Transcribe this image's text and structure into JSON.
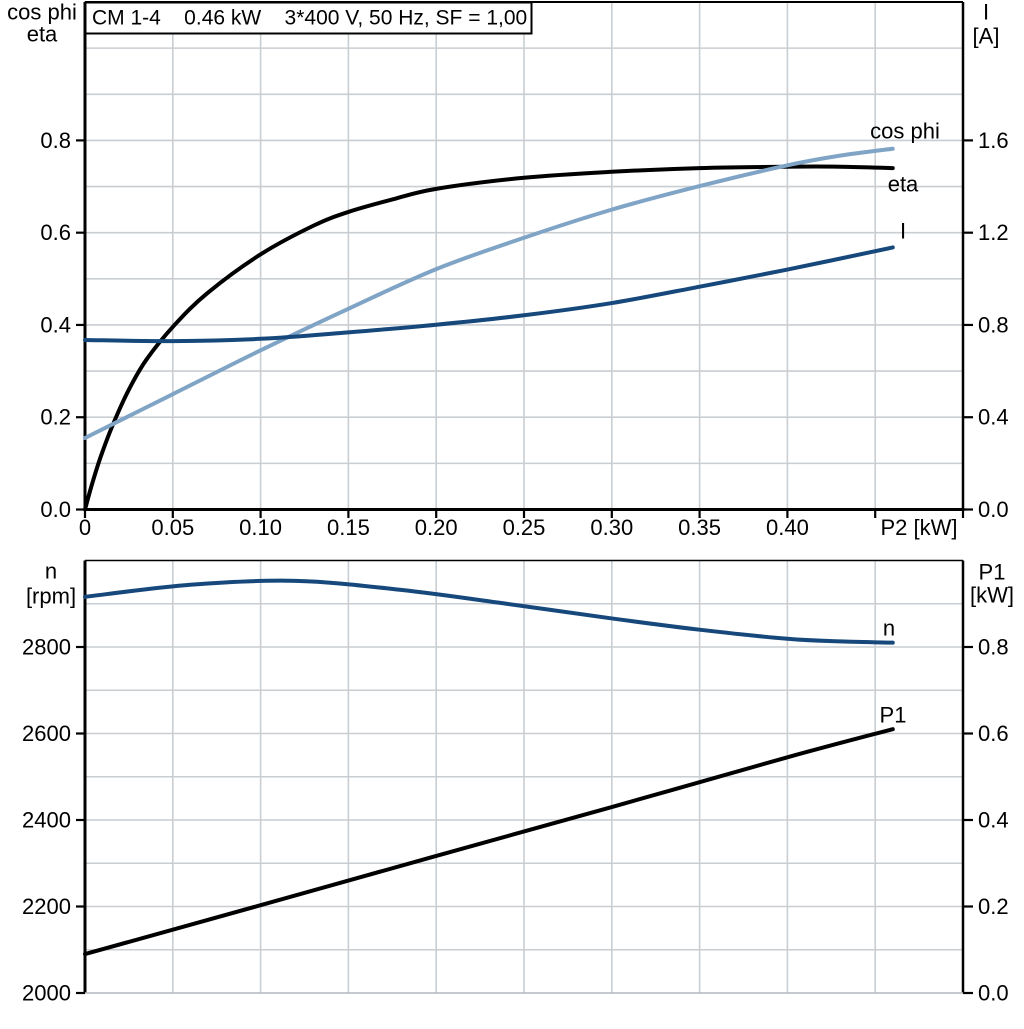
{
  "page": {
    "background": "#ffffff"
  },
  "colors": {
    "black": "#000000",
    "navy": "#16487b",
    "steel_blue": "#7fa4c5",
    "grid": "#c9ced2",
    "frame": "#000000",
    "bottom_plot_baseline": "#b4b9bd"
  },
  "chart_data": [
    {
      "type": "line",
      "title": "CM 1-4    0.46 kW    3*400 V, 50 Hz, SF = 1,00",
      "x_axis": {
        "min": 0,
        "max": 0.5,
        "grid_step": 0.05,
        "tick_values": [
          0,
          0.05,
          0.1,
          0.15,
          0.2,
          0.25,
          0.3,
          0.35,
          0.4,
          0.45,
          0.5
        ],
        "tick_labels": [
          "0",
          "0.05",
          "0.10",
          "0.15",
          "0.20",
          "0.25",
          "0.30",
          "0.35",
          "0.40",
          "",
          ""
        ],
        "title": "P2 [kW]"
      },
      "left_axis": {
        "title_lines": [
          "cos phi",
          "eta"
        ],
        "min": 0,
        "max": 1.1,
        "grid_step": 0.1,
        "tick_values": [
          0.0,
          0.2,
          0.4,
          0.6,
          0.8
        ],
        "tick_labels": [
          "0.0",
          "0.2",
          "0.4",
          "0.6",
          "0.8"
        ]
      },
      "right_axis": {
        "title_lines": [
          "I",
          "[A]"
        ],
        "min": 0,
        "max": 2.2,
        "grid_step": 0.2,
        "tick_values": [
          0.0,
          0.4,
          0.8,
          1.2,
          1.6
        ],
        "tick_labels": [
          "0.0",
          "0.4",
          "0.8",
          "1.2",
          "1.6"
        ]
      },
      "series": [
        {
          "name": "eta",
          "label": "eta",
          "axis": "left",
          "color": "#000000",
          "points": [
            [
              0,
              0
            ],
            [
              0.004,
              0.055
            ],
            [
              0.009,
              0.115
            ],
            [
              0.016,
              0.185
            ],
            [
              0.025,
              0.26
            ],
            [
              0.035,
              0.325
            ],
            [
              0.051,
              0.4
            ],
            [
              0.07,
              0.47
            ],
            [
              0.1,
              0.553
            ],
            [
              0.13,
              0.615
            ],
            [
              0.15,
              0.645
            ],
            [
              0.175,
              0.672
            ],
            [
              0.2,
              0.695
            ],
            [
              0.25,
              0.719
            ],
            [
              0.3,
              0.732
            ],
            [
              0.35,
              0.74
            ],
            [
              0.4,
              0.743
            ],
            [
              0.43,
              0.743
            ],
            [
              0.46,
              0.74
            ]
          ]
        },
        {
          "name": "cos-phi",
          "label": "cos phi",
          "axis": "left",
          "color": "#7fa4c5",
          "points": [
            [
              0,
              0.155
            ],
            [
              0.05,
              0.25
            ],
            [
              0.1,
              0.345
            ],
            [
              0.15,
              0.435
            ],
            [
              0.2,
              0.521
            ],
            [
              0.25,
              0.589
            ],
            [
              0.3,
              0.65
            ],
            [
              0.35,
              0.701
            ],
            [
              0.4,
              0.746
            ],
            [
              0.43,
              0.767
            ],
            [
              0.46,
              0.782
            ]
          ]
        },
        {
          "name": "current",
          "label": "I",
          "axis": "right",
          "color": "#16487b",
          "points": [
            [
              0,
              0.735
            ],
            [
              0.05,
              0.73
            ],
            [
              0.1,
              0.74
            ],
            [
              0.15,
              0.768
            ],
            [
              0.2,
              0.801
            ],
            [
              0.25,
              0.842
            ],
            [
              0.3,
              0.895
            ],
            [
              0.35,
              0.966
            ],
            [
              0.4,
              1.04
            ],
            [
              0.46,
              1.136
            ]
          ]
        }
      ]
    },
    {
      "type": "line",
      "title": "",
      "x_axis": {
        "min": 0,
        "max": 0.5,
        "grid_step": 0.05,
        "tick_values": [],
        "tick_labels": [],
        "title": ""
      },
      "left_axis": {
        "title_lines": [
          "n",
          "[rpm]"
        ],
        "min": 2000,
        "max": 3000,
        "grid_step": 100,
        "tick_values": [
          2000,
          2200,
          2400,
          2600,
          2800
        ],
        "tick_labels": [
          "2000",
          "2200",
          "2400",
          "2600",
          "2800"
        ]
      },
      "right_axis": {
        "title_lines": [
          "P1",
          "[kW]"
        ],
        "min": 0,
        "max": 1.0,
        "grid_step": 0.1,
        "tick_values": [
          0.0,
          0.2,
          0.4,
          0.6,
          0.8
        ],
        "tick_labels": [
          "0.0",
          "0.2",
          "0.4",
          "0.6",
          "0.8"
        ]
      },
      "series": [
        {
          "name": "speed",
          "label": "n",
          "axis": "left",
          "color": "#16487b",
          "points": [
            [
              0,
              2916
            ],
            [
              0.06,
              2944
            ],
            [
              0.12,
              2953
            ],
            [
              0.18,
              2932
            ],
            [
              0.24,
              2900
            ],
            [
              0.3,
              2866
            ],
            [
              0.35,
              2840
            ],
            [
              0.4,
              2819
            ],
            [
              0.43,
              2813
            ],
            [
              0.46,
              2810
            ]
          ]
        },
        {
          "name": "input-power",
          "label": "P1",
          "axis": "right",
          "color": "#000000",
          "points": [
            [
              0,
              0.09
            ],
            [
              0.1,
              0.203
            ],
            [
              0.2,
              0.317
            ],
            [
              0.3,
              0.43
            ],
            [
              0.4,
              0.545
            ],
            [
              0.46,
              0.61
            ]
          ]
        }
      ]
    }
  ]
}
